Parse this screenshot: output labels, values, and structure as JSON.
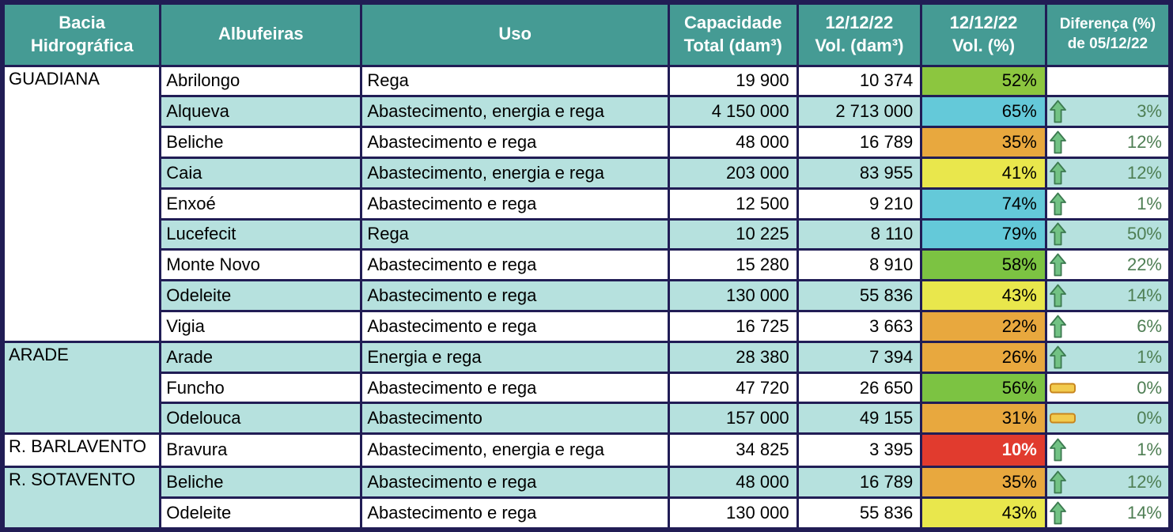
{
  "colors": {
    "header_bg": "#459b94",
    "header_text": "#ffffff",
    "border": "#211d55",
    "row_white": "#ffffff",
    "row_teal": "#b6e1de",
    "diff_text": "#4e7e53",
    "arrow_fill": "#72c284",
    "arrow_stroke": "#3c7a50",
    "dash_fill": "#f2cb4e",
    "dash_stroke": "#c8861e",
    "pct_green": "#8cc63f",
    "pct_green_dark": "#7cc342",
    "pct_blue": "#64c9d9",
    "pct_yellow": "#e9e74c",
    "pct_orange": "#e8a83e",
    "pct_red": "#e13b2e"
  },
  "header": {
    "basin": [
      "Bacia",
      "Hidrográfica"
    ],
    "reservoir": [
      "Albufeiras",
      ""
    ],
    "use": [
      "Uso",
      ""
    ],
    "capacity": [
      "Capacidade",
      "Total (dam³)"
    ],
    "vol_dam": [
      "12/12/22",
      "Vol. (dam³)"
    ],
    "vol_pct": [
      "12/12/22",
      "Vol. (%)"
    ],
    "diff": [
      "Diferença (%)",
      "de 05/12/22"
    ]
  },
  "groups": [
    {
      "name": "GUADIANA",
      "rows": 9,
      "shade": "white"
    },
    {
      "name": "ARADE",
      "rows": 3,
      "shade": "teal"
    },
    {
      "name": "R. BARLAVENTO",
      "rows": 1,
      "shade": "white"
    },
    {
      "name": "R. SOTAVENTO",
      "rows": 2,
      "shade": "teal"
    }
  ],
  "rows": [
    {
      "shade": "white",
      "reservoir": "Abrilongo",
      "use": "Rega",
      "capacity": "19 900",
      "volume": "10 374",
      "pct": "52%",
      "pct_bg": "#8cc63f",
      "pct_text": "#000000",
      "pct_bold": false,
      "trend": "none",
      "diff": ""
    },
    {
      "shade": "teal",
      "reservoir": "Alqueva",
      "use": "Abastecimento, energia e rega",
      "capacity": "4 150 000",
      "volume": "2 713 000",
      "pct": "65%",
      "pct_bg": "#64c9d9",
      "pct_text": "#000000",
      "pct_bold": false,
      "trend": "up",
      "diff": "3%"
    },
    {
      "shade": "white",
      "reservoir": "Beliche",
      "use": "Abastecimento e rega",
      "capacity": "48 000",
      "volume": "16 789",
      "pct": "35%",
      "pct_bg": "#e8a83e",
      "pct_text": "#000000",
      "pct_bold": false,
      "trend": "up",
      "diff": "12%"
    },
    {
      "shade": "teal",
      "reservoir": "Caia",
      "use": "Abastecimento, energia e rega",
      "capacity": "203 000",
      "volume": "83 955",
      "pct": "41%",
      "pct_bg": "#e9e74c",
      "pct_text": "#000000",
      "pct_bold": false,
      "trend": "up",
      "diff": "12%"
    },
    {
      "shade": "white",
      "reservoir": "Enxoé",
      "use": "Abastecimento e rega",
      "capacity": "12 500",
      "volume": "9 210",
      "pct": "74%",
      "pct_bg": "#64c9d9",
      "pct_text": "#000000",
      "pct_bold": false,
      "trend": "up",
      "diff": "1%"
    },
    {
      "shade": "teal",
      "reservoir": "Lucefecit",
      "use": "Rega",
      "capacity": "10 225",
      "volume": "8 110",
      "pct": "79%",
      "pct_bg": "#64c9d9",
      "pct_text": "#000000",
      "pct_bold": false,
      "trend": "up",
      "diff": "50%"
    },
    {
      "shade": "white",
      "reservoir": "Monte Novo",
      "use": "Abastecimento e rega",
      "capacity": "15 280",
      "volume": "8 910",
      "pct": "58%",
      "pct_bg": "#7cc342",
      "pct_text": "#000000",
      "pct_bold": false,
      "trend": "up",
      "diff": "22%"
    },
    {
      "shade": "teal",
      "reservoir": "Odeleite",
      "use": "Abastecimento e rega",
      "capacity": "130 000",
      "volume": "55 836",
      "pct": "43%",
      "pct_bg": "#e9e74c",
      "pct_text": "#000000",
      "pct_bold": false,
      "trend": "up",
      "diff": "14%"
    },
    {
      "shade": "white",
      "reservoir": "Vigia",
      "use": "Abastecimento e rega",
      "capacity": "16 725",
      "volume": "3 663",
      "pct": "22%",
      "pct_bg": "#e8a83e",
      "pct_text": "#000000",
      "pct_bold": false,
      "trend": "up",
      "diff": "6%"
    },
    {
      "shade": "teal",
      "reservoir": "Arade",
      "use": "Energia e rega",
      "capacity": "28 380",
      "volume": "7 394",
      "pct": "26%",
      "pct_bg": "#e8a83e",
      "pct_text": "#000000",
      "pct_bold": false,
      "trend": "up",
      "diff": "1%"
    },
    {
      "shade": "white",
      "reservoir": "Funcho",
      "use": "Abastecimento e rega",
      "capacity": "47 720",
      "volume": "26 650",
      "pct": "56%",
      "pct_bg": "#7cc342",
      "pct_text": "#000000",
      "pct_bold": false,
      "trend": "flat",
      "diff": "0%"
    },
    {
      "shade": "teal",
      "reservoir": "Odelouca",
      "use": "Abastecimento",
      "capacity": "157 000",
      "volume": "49 155",
      "pct": "31%",
      "pct_bg": "#e8a83e",
      "pct_text": "#000000",
      "pct_bold": false,
      "trend": "flat",
      "diff": "0%"
    },
    {
      "shade": "white",
      "reservoir": "Bravura",
      "use": "Abastecimento, energia e rega",
      "capacity": "34 825",
      "volume": "3 395",
      "pct": "10%",
      "pct_bg": "#e13b2e",
      "pct_text": "#ffffff",
      "pct_bold": true,
      "trend": "up",
      "diff": "1%"
    },
    {
      "shade": "teal",
      "reservoir": "Beliche",
      "use": "Abastecimento e rega",
      "capacity": "48 000",
      "volume": "16 789",
      "pct": "35%",
      "pct_bg": "#e8a83e",
      "pct_text": "#000000",
      "pct_bold": false,
      "trend": "up",
      "diff": "12%"
    },
    {
      "shade": "white",
      "reservoir": "Odeleite",
      "use": "Abastecimento e rega",
      "capacity": "130 000",
      "volume": "55 836",
      "pct": "43%",
      "pct_bg": "#e9e74c",
      "pct_text": "#000000",
      "pct_bold": false,
      "trend": "up",
      "diff": "14%"
    }
  ]
}
